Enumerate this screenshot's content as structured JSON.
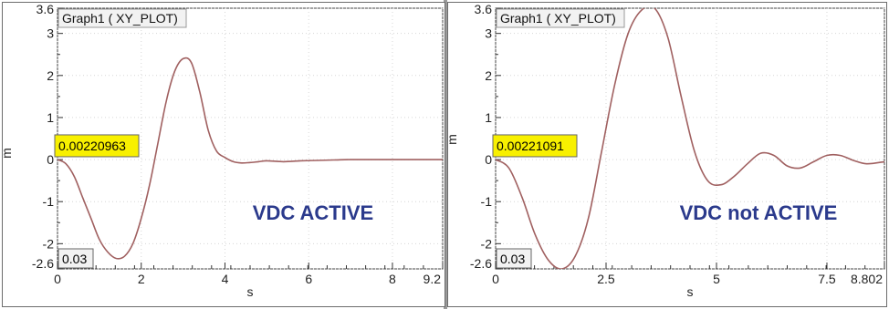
{
  "chart_data": [
    {
      "type": "line",
      "title": "Graph1 ( XY_PLOT)",
      "xlabel": "s",
      "ylabel": "m",
      "xlim": [
        0,
        9.2
      ],
      "ylim": [
        -2.6,
        3.6
      ],
      "x_ticks": [
        "0",
        "2",
        "4",
        "6",
        "8",
        "9.2"
      ],
      "y_ticks": [
        "3.6",
        "3",
        "2",
        "1",
        "0",
        "-1",
        "-2",
        "-2.6"
      ],
      "readout_value": "0.00220963",
      "readout_y": 0.0022,
      "corner_value": "0.03",
      "annotation": "VDC ACTIVE",
      "line_color": "#a06060",
      "grid": true,
      "series": [
        {
          "x": [
            0,
            0.2,
            0.4,
            0.6,
            0.8,
            1.0,
            1.2,
            1.4,
            1.6,
            1.8,
            2.0,
            2.2,
            2.4,
            2.6,
            2.8,
            3.0,
            3.2,
            3.4,
            3.6,
            3.8,
            4.0,
            4.2,
            4.4,
            4.6,
            4.8,
            5.0,
            5.4,
            5.8,
            6.2,
            6.6,
            7.0,
            7.6,
            8.2,
            9.2
          ],
          "y": [
            0.0,
            -0.1,
            -0.4,
            -0.9,
            -1.4,
            -1.9,
            -2.2,
            -2.35,
            -2.3,
            -2.0,
            -1.4,
            -0.6,
            0.4,
            1.4,
            2.1,
            2.4,
            2.3,
            1.6,
            0.7,
            0.2,
            0.05,
            -0.05,
            -0.08,
            -0.07,
            -0.05,
            -0.03,
            -0.05,
            -0.03,
            -0.02,
            -0.01,
            0.0,
            0.0,
            0.0,
            0.0
          ]
        }
      ]
    },
    {
      "type": "line",
      "title": "Graph1 ( XY_PLOT)",
      "xlabel": "s",
      "ylabel": "m",
      "xlim": [
        0,
        8.802
      ],
      "ylim": [
        -2.6,
        3.6
      ],
      "x_ticks": [
        "0",
        "2.5",
        "5",
        "7.5",
        "8.802"
      ],
      "y_ticks": [
        "3.6",
        "3",
        "2",
        "1",
        "0",
        "-1",
        "-2",
        "-2.6"
      ],
      "readout_value": "0.00221091",
      "readout_y": 0.0022,
      "corner_value": "0.03",
      "annotation": "VDC not ACTIVE",
      "line_color": "#a06060",
      "grid": true,
      "series": [
        {
          "x": [
            0,
            0.3,
            0.6,
            0.9,
            1.2,
            1.5,
            1.8,
            2.1,
            2.4,
            2.7,
            3.0,
            3.3,
            3.6,
            3.9,
            4.2,
            4.5,
            4.8,
            5.1,
            5.4,
            5.7,
            6.0,
            6.3,
            6.6,
            6.9,
            7.2,
            7.5,
            7.8,
            8.1,
            8.4,
            8.802
          ],
          "y": [
            0.0,
            -0.2,
            -0.9,
            -1.8,
            -2.4,
            -2.6,
            -2.3,
            -1.4,
            0.2,
            1.8,
            3.0,
            3.55,
            3.6,
            2.9,
            1.5,
            0.2,
            -0.5,
            -0.6,
            -0.4,
            -0.1,
            0.15,
            0.1,
            -0.15,
            -0.2,
            -0.05,
            0.1,
            0.1,
            -0.02,
            -0.1,
            -0.05
          ]
        }
      ]
    }
  ]
}
